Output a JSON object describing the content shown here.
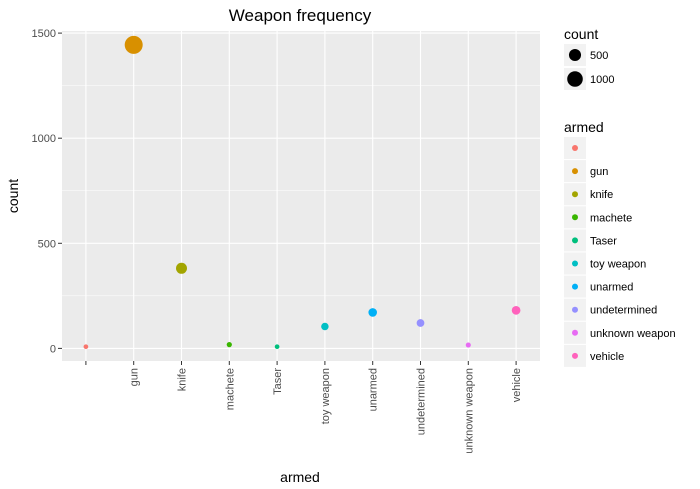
{
  "chart_data": {
    "type": "scatter",
    "title": "Weapon frequency",
    "xlabel": "armed",
    "ylabel": "count",
    "categories": [
      "",
      "gun",
      "knife",
      "machete",
      "Taser",
      "toy weapon",
      "unarmed",
      "undetermined",
      "unknown weapon",
      "vehicle"
    ],
    "values": [
      8,
      1444,
      381,
      18,
      8,
      104,
      171,
      121,
      16,
      181
    ],
    "colors": [
      "#F8766D",
      "#D89000",
      "#A3A500",
      "#39B600",
      "#00BF7D",
      "#00BFC4",
      "#00B0F6",
      "#9590FF",
      "#E76BF3",
      "#FF62BC"
    ],
    "ylim": [
      -60,
      1510
    ],
    "yticks": [
      0,
      500,
      1000,
      1500
    ],
    "grid": true,
    "panel_background": "#EBEBEB",
    "size_legend": {
      "title": "count",
      "breaks": [
        500,
        1000
      ],
      "labels": [
        "500",
        "1000"
      ]
    },
    "color_legend": {
      "title": "armed",
      "labels": [
        "",
        "gun",
        "knife",
        "machete",
        "Taser",
        "toy weapon",
        "unarmed",
        "undetermined",
        "unknown weapon",
        "vehicle"
      ]
    },
    "legend_position": "right"
  }
}
